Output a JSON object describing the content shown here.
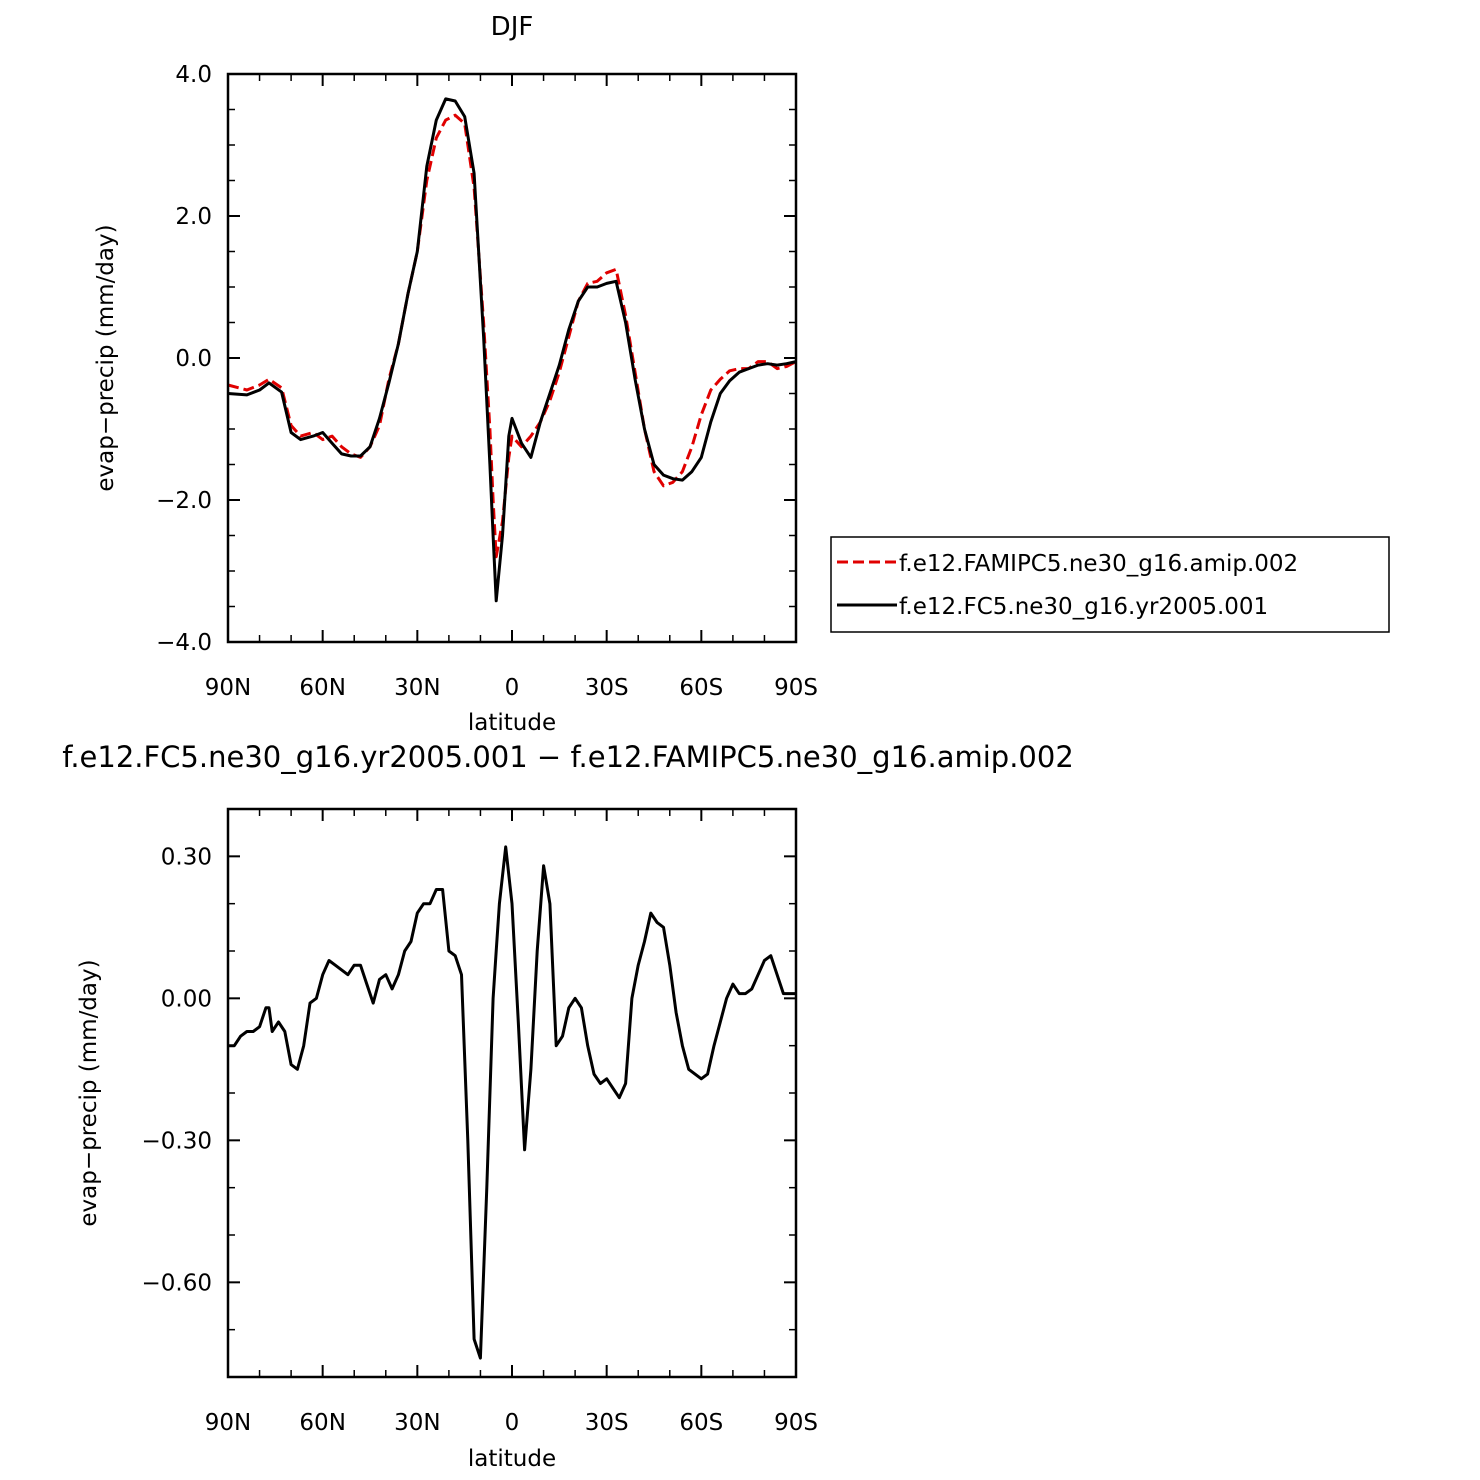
{
  "chart_data": [
    {
      "type": "line",
      "title": "DJF",
      "xlabel": "latitude",
      "ylabel": "evap−precip (mm/day)",
      "xlim": [
        90,
        -90
      ],
      "ylim": [
        -4.0,
        4.0
      ],
      "x_ticks": [
        {
          "value": 90,
          "label": "90N"
        },
        {
          "value": 60,
          "label": "60N"
        },
        {
          "value": 30,
          "label": "30N"
        },
        {
          "value": 0,
          "label": "0"
        },
        {
          "value": -30,
          "label": "30S"
        },
        {
          "value": -60,
          "label": "60S"
        },
        {
          "value": -90,
          "label": "90S"
        }
      ],
      "y_ticks": [
        {
          "value": 4.0,
          "label": "4.0"
        },
        {
          "value": 2.0,
          "label": "2.0"
        },
        {
          "value": 0.0,
          "label": "0.0"
        },
        {
          "value": -2.0,
          "label": "−2.0"
        },
        {
          "value": -4.0,
          "label": "−4.0"
        }
      ],
      "legend_position": "right",
      "series": [
        {
          "name": "f.e12.FAMIPC5.ne30_g16.amip.002",
          "color": "#e00000",
          "dash": "dashed",
          "x": [
            90,
            84,
            80,
            77,
            73,
            70,
            67,
            63,
            60,
            57,
            54,
            51,
            48,
            45,
            42,
            39,
            36,
            33,
            30,
            27,
            24,
            21,
            18,
            15,
            12,
            9,
            7,
            6,
            5,
            3,
            1,
            0,
            -3,
            -6,
            -9,
            -12,
            -15,
            -18,
            -21,
            -24,
            -27,
            -30,
            -33,
            -36,
            -39,
            -42,
            -45,
            -48,
            -51,
            -54,
            -57,
            -60,
            -63,
            -66,
            -69,
            -72,
            -75,
            -78,
            -81,
            -84,
            -87,
            -90
          ],
          "y": [
            -0.38,
            -0.45,
            -0.38,
            -0.3,
            -0.42,
            -0.95,
            -1.1,
            -1.05,
            -1.15,
            -1.1,
            -1.25,
            -1.35,
            -1.4,
            -1.25,
            -0.95,
            -0.3,
            0.2,
            0.9,
            1.5,
            2.5,
            3.1,
            3.35,
            3.42,
            3.3,
            2.4,
            0.5,
            -1.0,
            -2.0,
            -2.8,
            -2.3,
            -1.4,
            -1.1,
            -1.25,
            -1.1,
            -0.9,
            -0.6,
            -0.2,
            0.3,
            0.8,
            1.05,
            1.08,
            1.2,
            1.25,
            0.6,
            -0.2,
            -1.0,
            -1.6,
            -1.8,
            -1.75,
            -1.6,
            -1.25,
            -0.8,
            -0.45,
            -0.3,
            -0.18,
            -0.15,
            -0.15,
            -0.05,
            -0.05,
            -0.15,
            -0.12,
            -0.05
          ]
        },
        {
          "name": "f.e12.FC5.ne30_g16.yr2005.001",
          "color": "#000000",
          "dash": "solid",
          "x": [
            90,
            84,
            80,
            77,
            73,
            70,
            67,
            63,
            60,
            57,
            54,
            51,
            48,
            45,
            42,
            39,
            36,
            33,
            30,
            27,
            24,
            21,
            18,
            15,
            12,
            9,
            7,
            6,
            5,
            3,
            1,
            0,
            -3,
            -6,
            -9,
            -12,
            -15,
            -18,
            -21,
            -24,
            -27,
            -30,
            -33,
            -36,
            -39,
            -42,
            -45,
            -48,
            -51,
            -54,
            -57,
            -60,
            -63,
            -66,
            -69,
            -72,
            -75,
            -78,
            -81,
            -84,
            -87,
            -90
          ],
          "y": [
            -0.5,
            -0.52,
            -0.45,
            -0.35,
            -0.48,
            -1.05,
            -1.15,
            -1.1,
            -1.05,
            -1.2,
            -1.35,
            -1.38,
            -1.38,
            -1.25,
            -0.85,
            -0.35,
            0.2,
            0.9,
            1.5,
            2.7,
            3.35,
            3.65,
            3.62,
            3.4,
            2.6,
            0.3,
            -1.5,
            -2.5,
            -3.42,
            -2.5,
            -1.1,
            -0.85,
            -1.2,
            -1.4,
            -0.9,
            -0.5,
            -0.1,
            0.4,
            0.8,
            1.0,
            1.0,
            1.05,
            1.08,
            0.5,
            -0.3,
            -1.0,
            -1.5,
            -1.65,
            -1.7,
            -1.72,
            -1.6,
            -1.4,
            -0.9,
            -0.5,
            -0.32,
            -0.2,
            -0.15,
            -0.1,
            -0.08,
            -0.1,
            -0.08,
            -0.05
          ]
        }
      ]
    },
    {
      "type": "line",
      "title": "f.e12.FC5.ne30_g16.yr2005.001 − f.e12.FAMIPC5.ne30_g16.amip.002",
      "xlabel": "latitude",
      "ylabel": "evap−precip (mm/day)",
      "xlim": [
        90,
        -90
      ],
      "ylim": [
        -0.8,
        0.4
      ],
      "x_ticks": [
        {
          "value": 90,
          "label": "90N"
        },
        {
          "value": 60,
          "label": "60N"
        },
        {
          "value": 30,
          "label": "30N"
        },
        {
          "value": 0,
          "label": "0"
        },
        {
          "value": -30,
          "label": "30S"
        },
        {
          "value": -60,
          "label": "60S"
        },
        {
          "value": -90,
          "label": "90S"
        }
      ],
      "y_ticks": [
        {
          "value": 0.3,
          "label": "0.30"
        },
        {
          "value": 0.0,
          "label": "0.00"
        },
        {
          "value": -0.3,
          "label": "−0.30"
        },
        {
          "value": -0.6,
          "label": "−0.60"
        }
      ],
      "series": [
        {
          "color": "#000000",
          "dash": "solid",
          "x": [
            90,
            88,
            86,
            84,
            82,
            80,
            78,
            77,
            76,
            74,
            72,
            70,
            68,
            66,
            64,
            62,
            60,
            58,
            56,
            54,
            52,
            50,
            48,
            46,
            44,
            42,
            40,
            38,
            36,
            34,
            32,
            30,
            28,
            26,
            24,
            22,
            20,
            18,
            16,
            14,
            12,
            10,
            8,
            6,
            5,
            4,
            2,
            0,
            -2,
            -4,
            -6,
            -8,
            -10,
            -12,
            -14,
            -16,
            -18,
            -20,
            -22,
            -24,
            -26,
            -28,
            -30,
            -32,
            -34,
            -36,
            -38,
            -40,
            -42,
            -44,
            -46,
            -48,
            -50,
            -52,
            -54,
            -56,
            -58,
            -60,
            -62,
            -64,
            -66,
            -68,
            -70,
            -72,
            -74,
            -76,
            -78,
            -80,
            -82,
            -84,
            -86,
            -88,
            -90
          ],
          "y": [
            -0.1,
            -0.1,
            -0.08,
            -0.07,
            -0.07,
            -0.06,
            -0.02,
            -0.02,
            -0.07,
            -0.05,
            -0.07,
            -0.14,
            -0.15,
            -0.1,
            -0.01,
            0.0,
            0.05,
            0.08,
            0.07,
            0.06,
            0.05,
            0.07,
            0.07,
            0.03,
            -0.01,
            0.04,
            0.05,
            0.02,
            0.05,
            0.1,
            0.12,
            0.18,
            0.2,
            0.2,
            0.23,
            0.23,
            0.1,
            0.09,
            0.05,
            -0.3,
            -0.72,
            -0.76,
            -0.4,
            0.0,
            0.1,
            0.2,
            0.32,
            0.2,
            -0.05,
            -0.32,
            -0.15,
            0.1,
            0.28,
            0.2,
            -0.1,
            -0.08,
            -0.02,
            0.0,
            -0.02,
            -0.1,
            -0.16,
            -0.18,
            -0.17,
            -0.19,
            -0.21,
            -0.18,
            0.0,
            0.07,
            0.12,
            0.18,
            0.16,
            0.15,
            0.07,
            -0.03,
            -0.1,
            -0.15,
            -0.16,
            -0.17,
            -0.16,
            -0.1,
            -0.05,
            0.0,
            0.03,
            0.01,
            0.01,
            0.02,
            0.05,
            0.08,
            0.09,
            0.05,
            0.01,
            0.01,
            0.01
          ]
        }
      ]
    }
  ]
}
